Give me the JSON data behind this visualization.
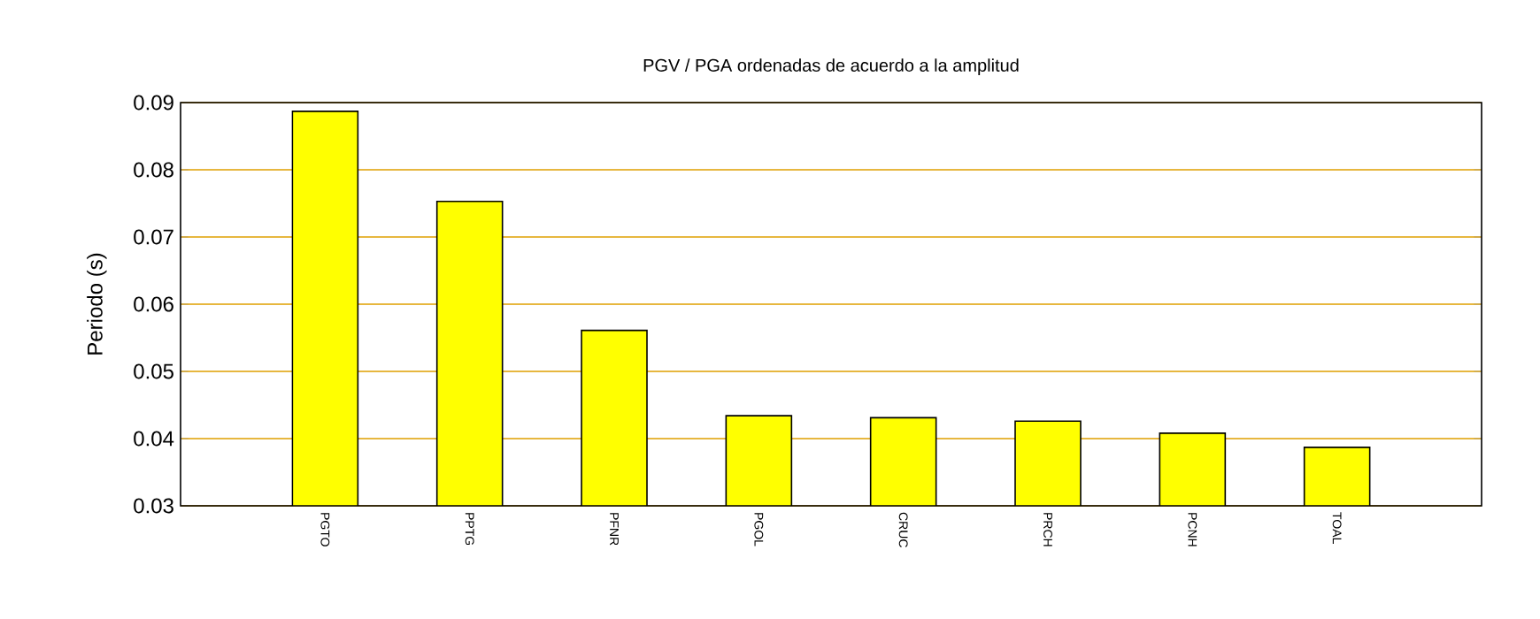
{
  "chart_data": {
    "type": "bar",
    "title": "PGV / PGA ordenadas de acuerdo a la amplitud",
    "ylabel": "Periodo (s)",
    "categories": [
      "PGTO",
      "PPTG",
      "PFNR",
      "PGOL",
      "CRUC",
      "PRCH",
      "PCNH",
      "TOAL"
    ],
    "values": [
      0.0887,
      0.0753,
      0.0561,
      0.0434,
      0.0431,
      0.0426,
      0.0408,
      0.0387
    ],
    "color": "#ffff00",
    "ylim": [
      0.03,
      0.09
    ],
    "yticks": [
      0.03,
      0.04,
      0.05,
      0.06,
      0.07,
      0.08,
      0.09
    ],
    "grid": "y"
  }
}
